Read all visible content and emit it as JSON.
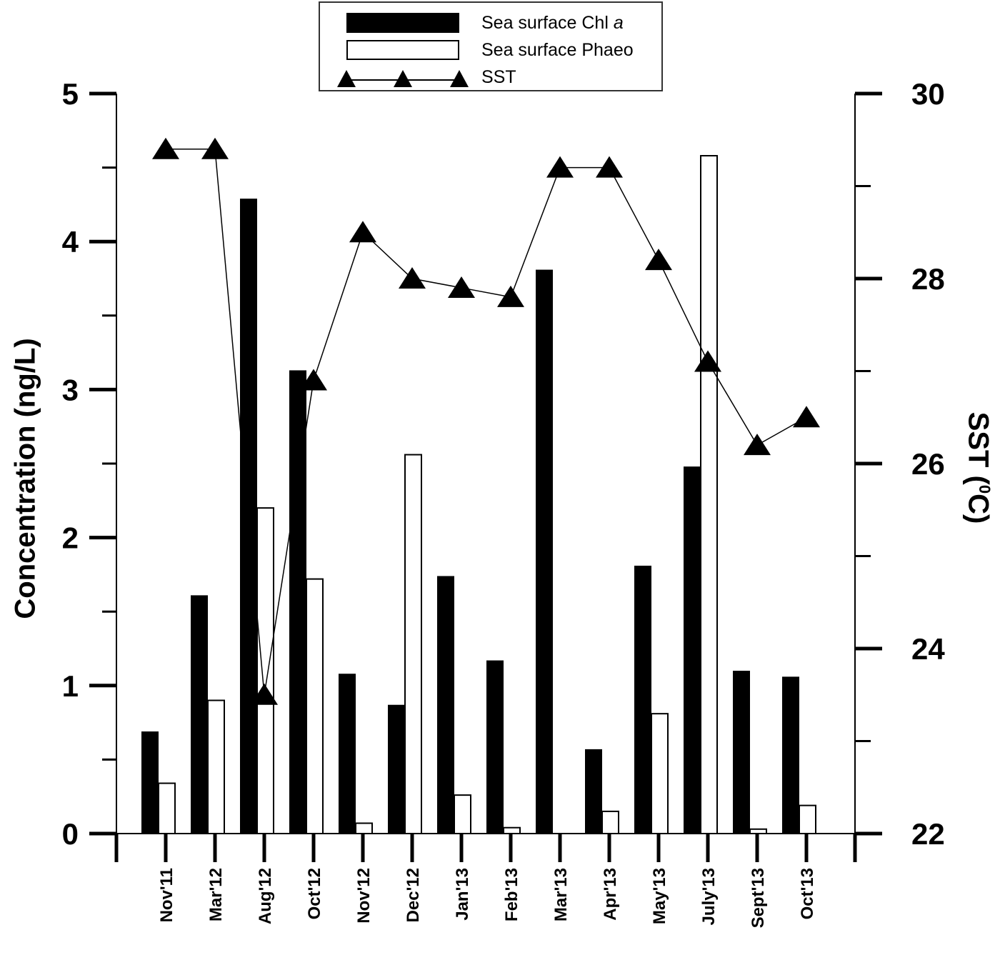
{
  "legend": {
    "chl_label": "Sea surface Chl ",
    "chl_label_italic": "a",
    "phaeo_label": "Sea surface Phaeo",
    "sst_label": "SST"
  },
  "axes": {
    "y_left_title": "Concentration (ng/L)",
    "y_right_title_prefix": "SST (",
    "y_right_title_sup": "0",
    "y_right_title_suffix": "C)"
  },
  "colors": {
    "chl": "#000000",
    "phaeo": "#ffffff",
    "line": "#000000"
  },
  "chart_data": {
    "type": "bar",
    "title": "",
    "xlabel": "",
    "ylabel": "Concentration (ng/L)",
    "y2label": "SST (0C)",
    "ylim": [
      0,
      5
    ],
    "y2lim": [
      22,
      30
    ],
    "yticks": [
      0,
      1,
      2,
      3,
      4,
      5
    ],
    "y2ticks": [
      22,
      24,
      26,
      28,
      30
    ],
    "grid": false,
    "legend_position": "top-center",
    "categories": [
      "Nov'11",
      "Mar'12",
      "Aug'12",
      "Oct'12",
      "Nov'12",
      "Dec'12",
      "Jan'13",
      "Feb'13",
      "Mar'13",
      "Apr'13",
      "May'13",
      "July'13",
      "Sept'13",
      "Oct'13"
    ],
    "series": [
      {
        "name": "Sea surface Chl a",
        "type": "bar",
        "axis": "left",
        "values": [
          0.69,
          1.61,
          4.29,
          3.13,
          1.08,
          0.87,
          1.74,
          1.17,
          3.81,
          0.57,
          1.81,
          2.48,
          1.1,
          1.06
        ]
      },
      {
        "name": "Sea surface Phaeo",
        "type": "bar",
        "axis": "left",
        "values": [
          0.34,
          0.9,
          2.2,
          1.72,
          0.07,
          2.56,
          0.26,
          0.04,
          0.0,
          0.15,
          0.81,
          4.58,
          0.03,
          0.19
        ]
      },
      {
        "name": "SST",
        "type": "line",
        "axis": "right",
        "marker": "triangle",
        "values": [
          29.4,
          29.4,
          23.5,
          26.9,
          28.5,
          28.0,
          27.9,
          27.8,
          29.2,
          29.2,
          28.2,
          27.1,
          26.2,
          26.5
        ]
      }
    ]
  }
}
